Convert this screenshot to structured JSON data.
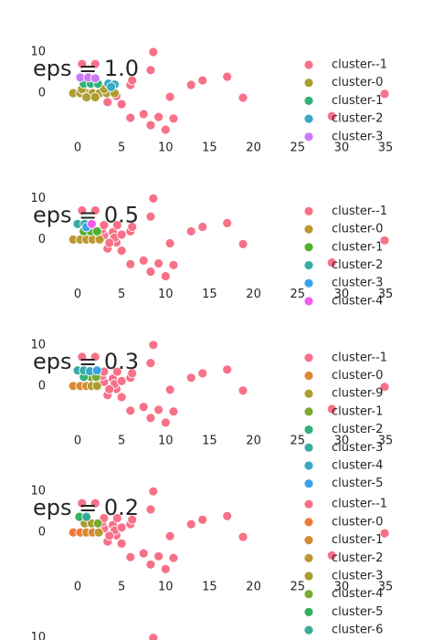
{
  "chart_data": [
    {
      "type": "scatter",
      "title": "eps = 1.0",
      "xlim": [
        -3,
        36
      ],
      "ylim": [
        -11,
        11.5
      ],
      "xticks": [
        0,
        5,
        10,
        15,
        20,
        25,
        30,
        35
      ],
      "yticks": [
        0,
        10
      ],
      "series": [
        {
          "name": "cluster--1",
          "color": "#f77189",
          "x": [
            0.5,
            2,
            8.6,
            8.3,
            6,
            6.2,
            10.5,
            12.9,
            14.2,
            17,
            18.8,
            34.9,
            28.9,
            6,
            7.5,
            8.3,
            9.2,
            10,
            10.9,
            5,
            3.4,
            4.4
          ],
          "values": [
            7.1,
            7.1,
            10,
            5.6,
            2,
            3.1,
            -0.9,
            2,
            3.1,
            4,
            -1.1,
            -0.2,
            -5.6,
            -6,
            -5.1,
            -7.8,
            -5.8,
            -8.9,
            -6.2,
            -2.7,
            -2.2,
            -0.7
          ]
        },
        {
          "name": "cluster-0",
          "color": "#ae9d31",
          "x": [
            -0.5,
            0.3,
            1,
            1.7,
            2.5,
            3.3,
            4.2,
            1,
            2,
            3,
            0.5
          ],
          "values": [
            0,
            0,
            0,
            0,
            0,
            0,
            0,
            -1,
            -1,
            1,
            1
          ]
        },
        {
          "name": "cluster-1",
          "color": "#33b07a",
          "x": [
            0.7,
            1.5,
            2.3
          ],
          "values": [
            2.3,
            2.3,
            2.3
          ]
        },
        {
          "name": "cluster-2",
          "color": "#38a9c5",
          "x": [
            3.5,
            4.2,
            3.8
          ],
          "values": [
            2.3,
            2.1,
            1.5
          ]
        },
        {
          "name": "cluster-3",
          "color": "#cc7af4",
          "x": [
            0.3,
            1.2,
            2
          ],
          "values": [
            3.8,
            3.8,
            3.6
          ]
        }
      ]
    },
    {
      "type": "scatter",
      "title": "eps = 0.5",
      "xlim": [
        -3,
        36
      ],
      "ylim": [
        -11,
        11.5
      ],
      "xticks": [
        0,
        5,
        10,
        15,
        20,
        25,
        30,
        35
      ],
      "yticks": [
        0,
        10
      ],
      "series": [
        {
          "name": "cluster--1",
          "color": "#f77189",
          "x": [
            0.5,
            2,
            8.6,
            8.3,
            6,
            6.2,
            10.5,
            12.9,
            14.2,
            17,
            18.8,
            34.9,
            28.9,
            6,
            7.5,
            8.3,
            9.2,
            10,
            10.9,
            5,
            3.4,
            4.4,
            3,
            4,
            4.2,
            3.6,
            2.8,
            5,
            4.5,
            3
          ],
          "values": [
            7.1,
            7.1,
            10,
            5.6,
            2,
            3.1,
            -0.9,
            2,
            3.1,
            4,
            -1.1,
            -0.2,
            -5.6,
            -6,
            -5.1,
            -7.8,
            -5.8,
            -8.9,
            -6.2,
            -2.7,
            -2.2,
            -0.7,
            1,
            1.8,
            0.5,
            -0.8,
            2.5,
            1.2,
            3.5,
            3.5
          ]
        },
        {
          "name": "cluster-0",
          "color": "#bb9832",
          "x": [
            -0.5,
            0.3,
            1,
            1.7,
            2.5
          ],
          "values": [
            0,
            0,
            0,
            0,
            0
          ]
        },
        {
          "name": "cluster-1",
          "color": "#50b131",
          "x": [
            0.7,
            1.5,
            2.2
          ],
          "values": [
            2,
            2,
            2
          ]
        },
        {
          "name": "cluster-2",
          "color": "#36ada4",
          "x": [
            0,
            0.8
          ],
          "values": [
            3.8,
            3.8
          ]
        },
        {
          "name": "cluster-3",
          "color": "#3ba3ec",
          "x": [
            1
          ],
          "values": [
            3
          ]
        },
        {
          "name": "cluster-4",
          "color": "#f45deb",
          "x": [
            1.6
          ],
          "values": [
            3.8
          ]
        }
      ]
    },
    {
      "type": "scatter",
      "title": "eps = 0.3",
      "xlim": [
        -3,
        36
      ],
      "ylim": [
        -11,
        11.5
      ],
      "xticks": [
        0,
        5,
        10,
        15,
        20,
        25,
        30,
        35
      ],
      "yticks": [
        0,
        10
      ],
      "series": [
        {
          "name": "cluster--1",
          "color": "#f77189",
          "x": [
            0.5,
            2,
            8.6,
            8.3,
            6,
            6.2,
            10.5,
            12.9,
            14.2,
            17,
            18.8,
            34.9,
            28.9,
            6,
            7.5,
            8.3,
            9.2,
            10,
            10.9,
            5,
            3.4,
            4.4,
            3,
            4,
            4.2,
            3.6,
            2.8,
            5,
            4.5,
            3
          ],
          "values": [
            7.1,
            7.1,
            10,
            5.6,
            2,
            3.1,
            -0.9,
            2,
            3.1,
            4,
            -1.1,
            -0.2,
            -5.6,
            -6,
            -5.1,
            -7.8,
            -5.8,
            -8.9,
            -6.2,
            -2.7,
            -2.2,
            -0.7,
            1,
            1.8,
            0.5,
            -0.8,
            2.5,
            1.2,
            3.5,
            3.5
          ]
        },
        {
          "name": "cluster-0",
          "color": "#dc8932",
          "x": [
            -0.5,
            0.3,
            1
          ],
          "values": [
            0,
            0,
            0
          ]
        },
        {
          "name": "cluster-9",
          "color": "#ae9d31",
          "x": [
            1.6,
            2.2
          ],
          "values": [
            0,
            0
          ]
        },
        {
          "name": "cluster-1",
          "color": "#77ab31",
          "x": [
            1.5,
            2.1
          ],
          "values": [
            2.2,
            2.2
          ]
        },
        {
          "name": "cluster-2",
          "color": "#33b07a",
          "x": [
            0.7
          ],
          "values": [
            2.2
          ]
        },
        {
          "name": "cluster-3",
          "color": "#36ada4",
          "x": [
            0,
            0.7
          ],
          "values": [
            3.8,
            3.8
          ]
        },
        {
          "name": "cluster-4",
          "color": "#38a9c5",
          "x": [
            1.4
          ],
          "values": [
            3.6
          ]
        },
        {
          "name": "cluster-5",
          "color": "#3ba3ec",
          "x": [
            2.2
          ],
          "values": [
            3.8
          ]
        }
      ]
    },
    {
      "type": "scatter",
      "title": "eps = 0.2",
      "xlim": [
        -3,
        36
      ],
      "ylim": [
        -11,
        11.5
      ],
      "xticks": [
        0,
        5,
        10,
        15,
        20,
        25,
        30,
        35
      ],
      "yticks": [
        0,
        10
      ],
      "series": [
        {
          "name": "cluster--1",
          "color": "#f77189",
          "x": [
            0.5,
            2,
            8.6,
            8.3,
            6,
            6.2,
            10.5,
            12.9,
            14.2,
            17,
            18.8,
            34.9,
            28.9,
            6,
            7.5,
            8.3,
            9.2,
            10,
            10.9,
            5,
            3.4,
            4.4,
            3,
            4,
            4.2,
            3.6,
            2.8,
            5,
            4.5,
            3
          ],
          "values": [
            7.1,
            7.1,
            10,
            5.6,
            2,
            3.1,
            -0.9,
            2,
            3.1,
            4,
            -1.1,
            -0.2,
            -5.6,
            -6,
            -5.1,
            -7.8,
            -5.8,
            -8.9,
            -6.2,
            -2.7,
            -2.2,
            -0.7,
            1,
            1.8,
            0.5,
            -0.8,
            2.5,
            1.2,
            3.5,
            3.5
          ]
        },
        {
          "name": "cluster-0",
          "color": "#ed7a3a",
          "x": [
            -0.5,
            0.3
          ],
          "values": [
            0,
            0
          ]
        },
        {
          "name": "cluster-1",
          "color": "#d48a33",
          "x": [
            1,
            1.7
          ],
          "values": [
            0,
            0
          ]
        },
        {
          "name": "cluster-2",
          "color": "#bb9832",
          "x": [
            2.4
          ],
          "values": [
            0
          ]
        },
        {
          "name": "cluster-3",
          "color": "#a59d31",
          "x": [
            0.8,
            1.6
          ],
          "values": [
            2.2,
            2.2
          ]
        },
        {
          "name": "cluster-4",
          "color": "#77ab31",
          "x": [
            2.3
          ],
          "values": [
            2.2
          ]
        },
        {
          "name": "cluster-5",
          "color": "#34b05e",
          "x": [
            0.2
          ],
          "values": [
            3.8
          ]
        },
        {
          "name": "cluster-6",
          "color": "#35ad9a",
          "x": [
            1
          ],
          "values": [
            3.8
          ]
        }
      ]
    },
    {
      "type": "scatter",
      "xlim": [
        -3,
        36
      ],
      "ylim": [
        -11,
        11.5
      ],
      "yticks": [
        10
      ],
      "series": [
        {
          "color": "#f77189",
          "x": [
            8.6
          ],
          "values": [
            10
          ]
        }
      ]
    }
  ]
}
